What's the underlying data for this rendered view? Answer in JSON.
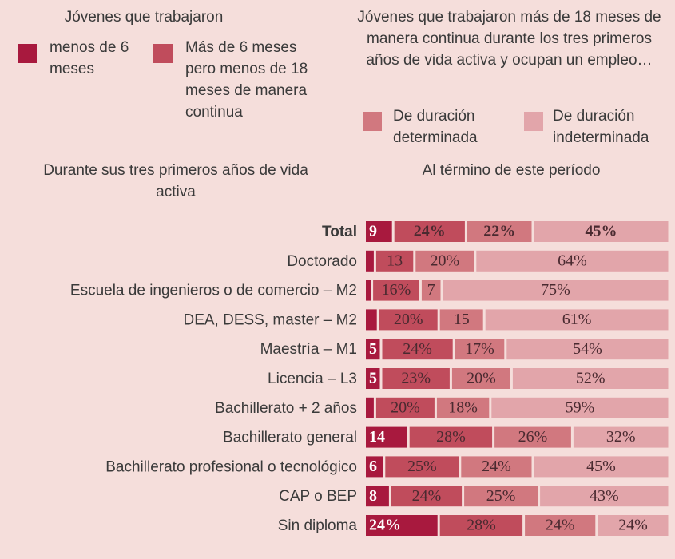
{
  "chart_data": {
    "type": "stacked_bar_horizontal",
    "legend_groups": [
      {
        "title": "Jóvenes que trabajaron",
        "series": [
          0,
          1
        ]
      },
      {
        "title": "Jóvenes que trabajaron más de 18 meses de manera continua durante los tres primeros años de vida activa y ocupan un empleo…",
        "series": [
          2,
          3
        ]
      }
    ],
    "column_headers": [
      "Durante sus tres primeros años de vida activa",
      "Al término de este período"
    ],
    "categories": [
      "Total",
      "Doctorado",
      "Escuela de ingenieros o de comercio – M2",
      "DEA, DESS, master – M2",
      "Maestría – M1",
      "Licencia – L3",
      "Bachillerato + 2 años",
      "Bachillerato general",
      "Bachillerato profesional o tecnológico",
      "CAP o BEP",
      "Sin diploma"
    ],
    "xlim": [
      0,
      100
    ],
    "series": [
      {
        "name": "menos de 6 meses",
        "color": "#a8193e",
        "values": [
          9,
          3,
          2,
          4,
          5,
          5,
          3,
          14,
          6,
          8,
          24
        ],
        "value_labels": [
          "9",
          null,
          null,
          null,
          "5",
          "5",
          null,
          "14",
          "6",
          "8",
          "24%"
        ]
      },
      {
        "name": "Más de 6 meses pero menos de 18 meses de manera continua",
        "color": "#c04c5c",
        "values": [
          24,
          13,
          16,
          20,
          24,
          23,
          20,
          28,
          25,
          24,
          28
        ],
        "value_labels": [
          "24%",
          "13",
          "16%",
          "20%",
          "24%",
          "23%",
          "20%",
          "28%",
          "25%",
          "24%",
          "28%"
        ]
      },
      {
        "name": "De duración determinada",
        "color": "#d1787f",
        "values": [
          22,
          20,
          7,
          15,
          17,
          20,
          18,
          26,
          24,
          25,
          24
        ],
        "value_labels": [
          "22%",
          "20%",
          "7",
          "15",
          "17%",
          "20%",
          "18%",
          "26%",
          "24%",
          "25%",
          "24%"
        ]
      },
      {
        "name": "De duración indeterminada",
        "color": "#e2a5aa",
        "values": [
          45,
          64,
          75,
          61,
          54,
          52,
          59,
          32,
          45,
          43,
          24
        ],
        "value_labels": [
          "45%",
          "64%",
          "75%",
          "61%",
          "54%",
          "52%",
          "59%",
          "32%",
          "45%",
          "43%",
          "24%"
        ]
      }
    ]
  }
}
